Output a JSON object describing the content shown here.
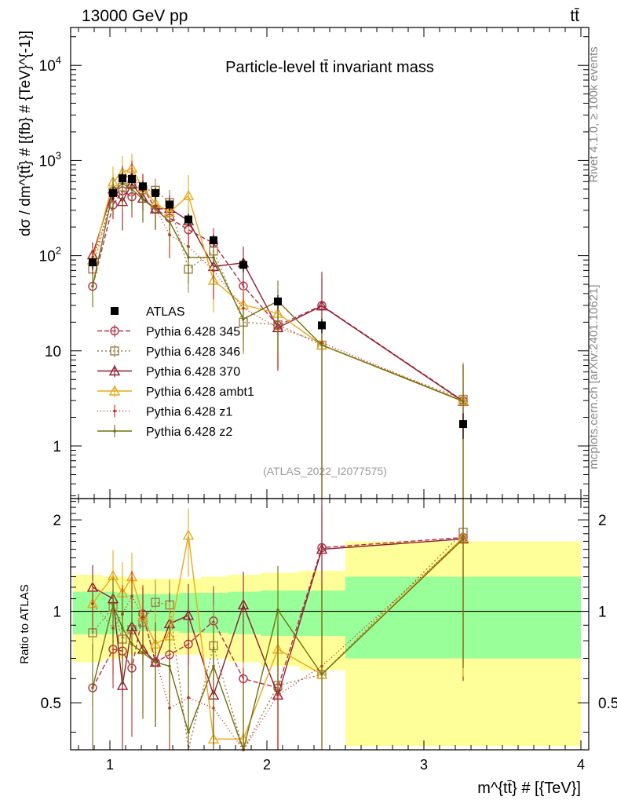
{
  "header": {
    "left": "13000 GeV pp",
    "right": "tt̄"
  },
  "side": {
    "top": "Rivet 4.1.0, ≥ 100k events",
    "bottom": "mcplots.cern.ch [arXiv:2401.10621]"
  },
  "chart_data": {
    "type": "line",
    "title": "Particle-level tt̄ invariant mass",
    "analysis": "(ATLAS_2022_I2077575)",
    "xlabel": "m^{tt̄} # [{TeV}]",
    "ylabel": "dσ / dm^{tt̄} # [{fb} # {TeV}^{-1}]",
    "ratio_ylabel": "Ratio to ATLAS",
    "xlim": [
      0.75,
      4.05
    ],
    "ylim": [
      0.28,
      25000
    ],
    "ratio_ylim": [
      0.35,
      2.35
    ],
    "x_ticks": [
      "1",
      "2",
      "3",
      "4"
    ],
    "y_ticks": [
      "1",
      "10",
      "10^2",
      "10^3",
      "10^4"
    ],
    "ratio_ticks": [
      "0.5",
      "1",
      "2"
    ],
    "x": [
      0.89,
      1.02,
      1.08,
      1.14,
      1.21,
      1.29,
      1.38,
      1.5,
      1.66,
      1.85,
      2.07,
      2.35,
      3.25
    ],
    "data": {
      "name": "ATLAS",
      "values": [
        85,
        455,
        650,
        640,
        535,
        455,
        345,
        240,
        145,
        80,
        33,
        18.5,
        1.7
      ],
      "band_inner": [
        0.16,
        0.16,
        0.15,
        0.14,
        0.14,
        0.14,
        0.14,
        0.15,
        0.15,
        0.16,
        0.17,
        0.17,
        0.3
      ],
      "band_outer": [
        0.32,
        0.3,
        0.3,
        0.28,
        0.28,
        0.28,
        0.28,
        0.28,
        0.3,
        0.32,
        0.34,
        0.36,
        0.7
      ]
    },
    "mc": [
      {
        "name": "Pythia 6.428 345",
        "color": "#b03048",
        "marker": "circle",
        "dash": "6,3",
        "ratio": [
          0.56,
          0.75,
          0.74,
          0.65,
          0.98,
          0.68,
          0.72,
          0.78,
          0.93,
          0.6,
          0.56,
          1.62,
          1.75
        ],
        "err": [
          0.06,
          0.16,
          0.18,
          0.22,
          0.24,
          0.22,
          0.24,
          0.26,
          0.28,
          0.3,
          0.36,
          0.6,
          0.9
        ]
      },
      {
        "name": "Pythia 6.428 346",
        "color": "#a08048",
        "marker": "square",
        "dash": "2,3",
        "ratio": [
          0.85,
          1.03,
          0.81,
          0.87,
          0.92,
          1.07,
          1.05,
          0.3,
          0.77,
          0.25,
          0.57,
          0.62,
          1.82
        ],
        "err": [
          0.1,
          0.15,
          0.18,
          0.2,
          0.22,
          0.2,
          0.22,
          0.24,
          0.28,
          0.3,
          0.36,
          0.6,
          0.9
        ]
      },
      {
        "name": "Pythia 6.428 370",
        "color": "#901c30",
        "marker": "triangle",
        "dash": "",
        "ratio": [
          1.2,
          1.1,
          0.57,
          0.89,
          0.75,
          0.68,
          0.91,
          0.97,
          0.53,
          1.05,
          0.53,
          1.6,
          1.73
        ],
        "err": [
          0.22,
          0.26,
          0.28,
          0.24,
          0.24,
          0.22,
          0.24,
          0.26,
          0.3,
          0.3,
          0.36,
          0.8,
          0.95
        ]
      },
      {
        "name": "Pythia 6.428 ambt1",
        "color": "#e8a81c",
        "marker": "triangle",
        "dash": "",
        "ratio": [
          1.06,
          1.31,
          1.15,
          1.3,
          0.96,
          0.78,
          0.83,
          1.78,
          0.38,
          0.38,
          0.75,
          0.62,
          1.75
        ],
        "err": [
          0.2,
          0.28,
          0.3,
          0.26,
          0.24,
          0.24,
          0.24,
          0.4,
          0.3,
          0.3,
          0.36,
          0.6,
          0.95
        ]
      },
      {
        "name": "Pythia 6.428 z1",
        "color": "#cc2418",
        "marker": "dot",
        "dash": "1,3",
        "ratio": [
          1.06,
          0.88,
          0.98,
          1.12,
          0.96,
          0.7,
          0.48,
          0.52,
          0.48,
          0.35,
          0.53,
          0.66,
          1.73
        ],
        "err": [
          0.18,
          0.22,
          0.24,
          0.24,
          0.24,
          0.22,
          0.24,
          0.26,
          0.28,
          0.3,
          0.34,
          0.6,
          0.9
        ]
      },
      {
        "name": "Pythia 6.428 z2",
        "color": "#707010",
        "marker": "dot",
        "dash": "",
        "ratio": [
          0.56,
          1.05,
          0.88,
          0.78,
          0.73,
          0.68,
          0.66,
          0.4,
          0.66,
          0.27,
          1.01,
          0.62,
          1.73
        ],
        "err": [
          0.22,
          0.24,
          0.26,
          0.24,
          0.24,
          0.22,
          0.24,
          0.26,
          0.28,
          0.3,
          0.4,
          0.6,
          0.9
        ]
      }
    ]
  }
}
